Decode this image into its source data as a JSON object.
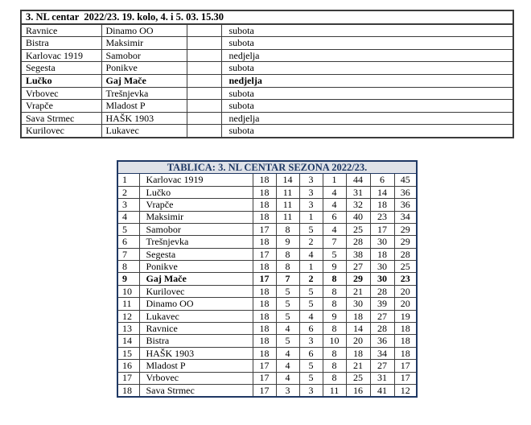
{
  "fixtures_table": {
    "title": "3. NL centar  2022/23. 19. kolo, 4. i 5. 03. 15.30",
    "rows": [
      {
        "home": "Ravnice",
        "away": "Dinamo OO",
        "score": "",
        "day": "subota",
        "highlight": false
      },
      {
        "home": "Bistra",
        "away": "Maksimir",
        "score": "",
        "day": "subota",
        "highlight": false
      },
      {
        "home": "Karlovac 1919",
        "away": "Samobor",
        "score": "",
        "day": "nedjelja",
        "highlight": false
      },
      {
        "home": "Segesta",
        "away": "Ponikve",
        "score": "",
        "day": "subota",
        "highlight": false
      },
      {
        "home": "Lučko",
        "away": "Gaj Mače",
        "score": "",
        "day": "nedjelja",
        "highlight": true
      },
      {
        "home": "Vrbovec",
        "away": "Trešnjevka",
        "score": "",
        "day": "subota",
        "highlight": false
      },
      {
        "home": "Vrapče",
        "away": "Mladost P",
        "score": "",
        "day": "subota",
        "highlight": false
      },
      {
        "home": "Sava Strmec",
        "away": "HAŠK 1903",
        "score": "",
        "day": "nedjelja",
        "highlight": false
      },
      {
        "home": "Kurilovec",
        "away": "Lukavec",
        "score": "",
        "day": "subota",
        "highlight": false
      }
    ]
  },
  "standings_table": {
    "title": "TABLICA: 3. NL CENTAR SEZONA 2022/23.",
    "accent_text_color": "#1F3864",
    "header_background": "#DFE2E8",
    "rows": [
      {
        "rank": "1",
        "team": "Karlovac 1919",
        "gp": "18",
        "w": "14",
        "d": "3",
        "l": "1",
        "gf": "44",
        "ga": "6",
        "pts": "45",
        "highlight": false
      },
      {
        "rank": "2",
        "team": "Lučko",
        "gp": "18",
        "w": "11",
        "d": "3",
        "l": "4",
        "gf": "31",
        "ga": "14",
        "pts": "36",
        "highlight": false
      },
      {
        "rank": "3",
        "team": "Vrapče",
        "gp": "18",
        "w": "11",
        "d": "3",
        "l": "4",
        "gf": "32",
        "ga": "18",
        "pts": "36",
        "highlight": false
      },
      {
        "rank": "4",
        "team": "Maksimir",
        "gp": "18",
        "w": "11",
        "d": "1",
        "l": "6",
        "gf": "40",
        "ga": "23",
        "pts": "34",
        "highlight": false
      },
      {
        "rank": "5",
        "team": "Samobor",
        "gp": "17",
        "w": "8",
        "d": "5",
        "l": "4",
        "gf": "25",
        "ga": "17",
        "pts": "29",
        "highlight": false
      },
      {
        "rank": "6",
        "team": "Trešnjevka",
        "gp": "18",
        "w": "9",
        "d": "2",
        "l": "7",
        "gf": "28",
        "ga": "30",
        "pts": "29",
        "highlight": false
      },
      {
        "rank": "7",
        "team": "Segesta",
        "gp": "17",
        "w": "8",
        "d": "4",
        "l": "5",
        "gf": "38",
        "ga": "18",
        "pts": "28",
        "highlight": false
      },
      {
        "rank": "8",
        "team": "Ponikve",
        "gp": "18",
        "w": "8",
        "d": "1",
        "l": "9",
        "gf": "27",
        "ga": "30",
        "pts": "25",
        "highlight": false
      },
      {
        "rank": "9",
        "team": "Gaj Mače",
        "gp": "17",
        "w": "7",
        "d": "2",
        "l": "8",
        "gf": "29",
        "ga": "30",
        "pts": "23",
        "highlight": true
      },
      {
        "rank": "10",
        "team": "Kurilovec",
        "gp": "18",
        "w": "5",
        "d": "5",
        "l": "8",
        "gf": "21",
        "ga": "28",
        "pts": "20",
        "highlight": false
      },
      {
        "rank": "11",
        "team": "Dinamo OO",
        "gp": "18",
        "w": "5",
        "d": "5",
        "l": "8",
        "gf": "30",
        "ga": "39",
        "pts": "20",
        "highlight": false
      },
      {
        "rank": "12",
        "team": "Lukavec",
        "gp": "18",
        "w": "5",
        "d": "4",
        "l": "9",
        "gf": "18",
        "ga": "27",
        "pts": "19",
        "highlight": false
      },
      {
        "rank": "13",
        "team": "Ravnice",
        "gp": "18",
        "w": "4",
        "d": "6",
        "l": "8",
        "gf": "14",
        "ga": "28",
        "pts": "18",
        "highlight": false
      },
      {
        "rank": "14",
        "team": "Bistra",
        "gp": "18",
        "w": "5",
        "d": "3",
        "l": "10",
        "gf": "20",
        "ga": "36",
        "pts": "18",
        "highlight": false
      },
      {
        "rank": "15",
        "team": "HAŠK 1903",
        "gp": "18",
        "w": "4",
        "d": "6",
        "l": "8",
        "gf": "18",
        "ga": "34",
        "pts": "18",
        "highlight": false
      },
      {
        "rank": "16",
        "team": "Mladost P",
        "gp": "17",
        "w": "4",
        "d": "5",
        "l": "8",
        "gf": "21",
        "ga": "27",
        "pts": "17",
        "highlight": false
      },
      {
        "rank": "17",
        "team": "Vrbovec",
        "gp": "17",
        "w": "4",
        "d": "5",
        "l": "8",
        "gf": "25",
        "ga": "31",
        "pts": "17",
        "highlight": false
      },
      {
        "rank": "18",
        "team": "Sava Strmec",
        "gp": "17",
        "w": "3",
        "d": "3",
        "l": "11",
        "gf": "16",
        "ga": "41",
        "pts": "12",
        "highlight": false
      }
    ]
  }
}
